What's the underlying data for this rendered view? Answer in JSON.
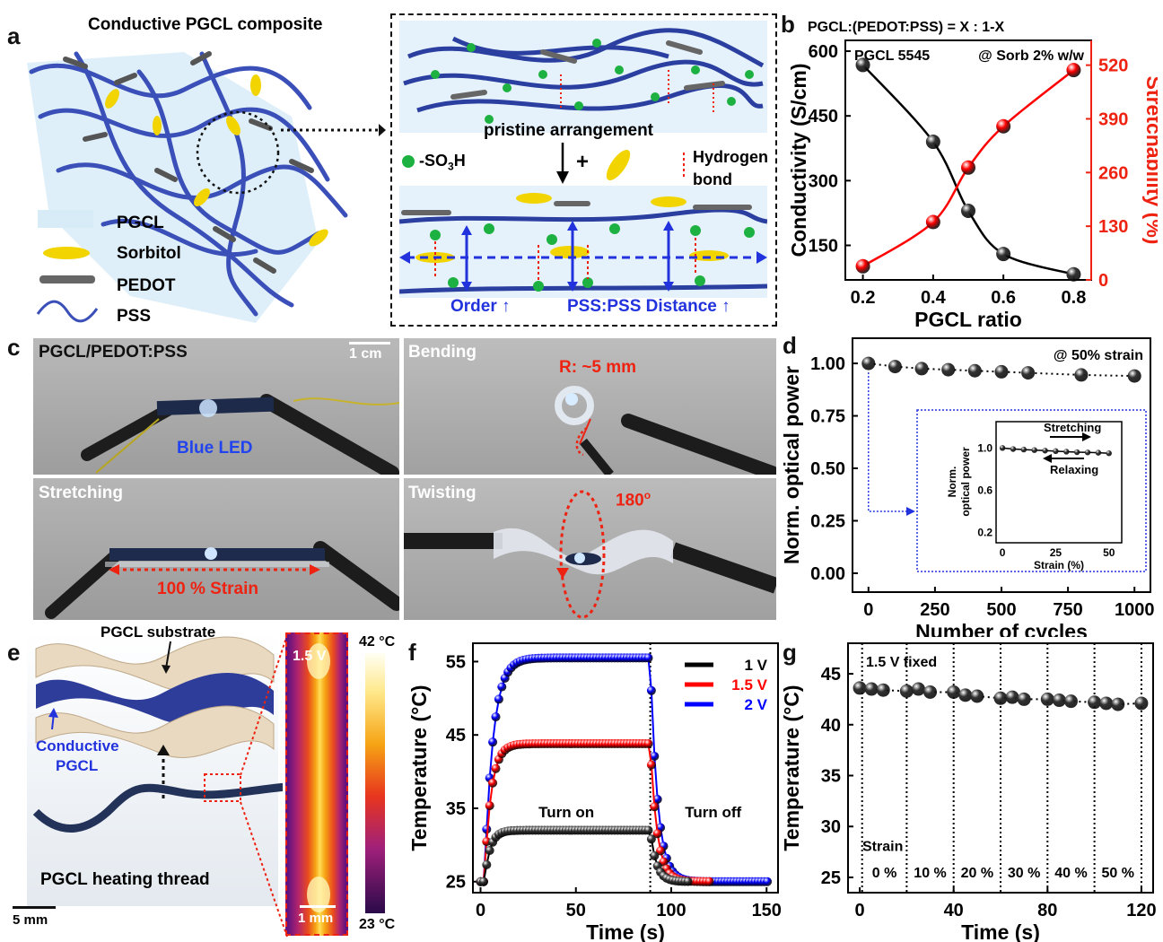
{
  "panels": {
    "a": {
      "letter": "a",
      "title": "Conductive PGCL composite",
      "legend": [
        "PGCL",
        "Sorbitol",
        "PEDOT",
        "PSS"
      ],
      "inset": {
        "top_label": "pristine arrangement",
        "so3h": "-SO",
        "so3h_sub": "3",
        "so3h_tail": "H",
        "plus": "+",
        "hbond1": "Hydrogen",
        "hbond2": "bond",
        "order": "Order ↑",
        "distance": "PSS:PSS Distance ↑"
      }
    },
    "b": {
      "letter": "b"
    },
    "c": {
      "letter": "c",
      "t1": "PGCL/PEDOT:PSS",
      "scale": "1 cm",
      "led": "Blue LED",
      "t2": "Bending",
      "radius": "R: ~5 mm",
      "t3": "Stretching",
      "strain": "100 % Strain",
      "t4": "Twisting",
      "angle": "180",
      "angle_sup": "o"
    },
    "d": {
      "letter": "d"
    },
    "e": {
      "letter": "e",
      "substrate": "PGCL substrate",
      "conductive1": "Conductive",
      "conductive2": "PGCL",
      "thread": "PGCL heating thread",
      "scale_thread": "5 mm",
      "thermal_v": "1.5 V",
      "scale_thermal": "1 mm",
      "cbar_max": "42 °C",
      "cbar_min": "23 °C"
    },
    "f": {
      "letter": "f"
    },
    "g": {
      "letter": "g"
    }
  },
  "chart_data": [
    {
      "id": "b",
      "type": "line",
      "title": "PGCL:(PEDOT:PSS) = X : 1-X",
      "annotations": [
        "PGCL 5545",
        "@ Sorb 2% w/w"
      ],
      "xlabel": "PGCL ratio",
      "ylabel": "Conductivity (S/cm)",
      "y2label": "Stretchability (%)",
      "xlim": [
        0.15,
        0.85
      ],
      "ylim": [
        70,
        625
      ],
      "y2lim": [
        0,
        580
      ],
      "xticks": [
        0.2,
        0.4,
        0.6,
        0.8
      ],
      "yticks": [
        150,
        300,
        450,
        600
      ],
      "y2ticks": [
        0,
        130,
        260,
        390,
        520
      ],
      "x": [
        0.2,
        0.4,
        0.5,
        0.6,
        0.8
      ],
      "series": [
        {
          "name": "Conductivity",
          "axis": "left",
          "color": "#000000",
          "values": [
            568,
            390,
            230,
            130,
            83
          ]
        },
        {
          "name": "Stretchability",
          "axis": "right",
          "color": "#ff0000",
          "values": [
            33,
            140,
            272,
            372,
            508
          ]
        }
      ]
    },
    {
      "id": "d",
      "type": "line",
      "annotation": "@ 50% strain",
      "xlabel": "Number of cycles",
      "ylabel": "Norm. optical power",
      "xlim": [
        -60,
        1060
      ],
      "ylim": [
        -0.09,
        1.12
      ],
      "xticks": [
        0,
        250,
        500,
        750,
        1000
      ],
      "yticks": [
        0.0,
        0.25,
        0.5,
        0.75,
        1.0
      ],
      "x": [
        0,
        100,
        200,
        300,
        400,
        500,
        600,
        800,
        1000
      ],
      "series": [
        {
          "values": [
            1.0,
            0.985,
            0.975,
            0.97,
            0.965,
            0.96,
            0.955,
            0.945,
            0.94
          ]
        }
      ],
      "inset": {
        "xlabel": "Strain (%)",
        "ylabel": [
          "Norm.",
          "optical power"
        ],
        "xlim": [
          -3,
          56
        ],
        "ylim": [
          0.1,
          1.25
        ],
        "xticks": [
          0,
          25,
          50
        ],
        "yticks": [
          0.2,
          0.6,
          1.0
        ],
        "arrow_labels": [
          "Stretching",
          "Relaxing"
        ],
        "x": [
          0,
          5,
          10,
          15,
          20,
          25,
          30,
          35,
          40,
          45,
          50
        ],
        "values": [
          1.0,
          0.99,
          0.985,
          0.98,
          0.975,
          0.97,
          0.965,
          0.96,
          0.958,
          0.955,
          0.95
        ]
      }
    },
    {
      "id": "f",
      "type": "line",
      "xlabel": "Time (s)",
      "ylabel": "Temperature (°C)",
      "xlim": [
        -4,
        156
      ],
      "ylim": [
        23.5,
        57.5
      ],
      "xticks": [
        0,
        50,
        100,
        150
      ],
      "yticks": [
        25,
        35,
        45,
        55
      ],
      "annotations": [
        "Turn on",
        "Turn off"
      ],
      "divider_x": 89,
      "series": [
        {
          "name": "1 V",
          "color": "#000000",
          "end": 110,
          "base": 25.0,
          "plateau": 32.0,
          "tau_on": 3.0,
          "tau_off": 3.2
        },
        {
          "name": "1.5 V",
          "color": "#ff0000",
          "end": 120,
          "base": 25.0,
          "plateau": 43.8,
          "tau_on": 3.5,
          "tau_off": 3.6
        },
        {
          "name": "2 V",
          "color": "#0000ff",
          "end": 151,
          "base": 25.0,
          "plateau": 55.5,
          "tau_on": 4.5,
          "tau_off": 3.8
        }
      ]
    },
    {
      "id": "g",
      "type": "line",
      "xlabel": "Time (s)",
      "ylabel": "Temperature (°C)",
      "xlim": [
        -5,
        125
      ],
      "ylim": [
        23.5,
        48
      ],
      "xticks": [
        0,
        40,
        80,
        120
      ],
      "yticks": [
        25,
        30,
        35,
        40,
        45
      ],
      "annotations": [
        "1.5 V fixed",
        "Strain"
      ],
      "divider_x": [
        1,
        20,
        40,
        60,
        80,
        100,
        120
      ],
      "segment_labels": [
        "0 %",
        "10 %",
        "20 %",
        "30 %",
        "40 %",
        "50 %"
      ],
      "x": [
        0,
        5,
        10,
        20,
        25,
        30,
        40,
        45,
        50,
        60,
        65,
        70,
        80,
        85,
        90,
        100,
        105,
        110,
        120
      ],
      "series": [
        {
          "values": [
            43.6,
            43.5,
            43.4,
            43.3,
            43.5,
            43.2,
            43.2,
            42.9,
            42.8,
            42.6,
            42.7,
            42.5,
            42.5,
            42.4,
            42.3,
            42.2,
            42.1,
            42.0,
            42.1
          ]
        }
      ]
    }
  ]
}
